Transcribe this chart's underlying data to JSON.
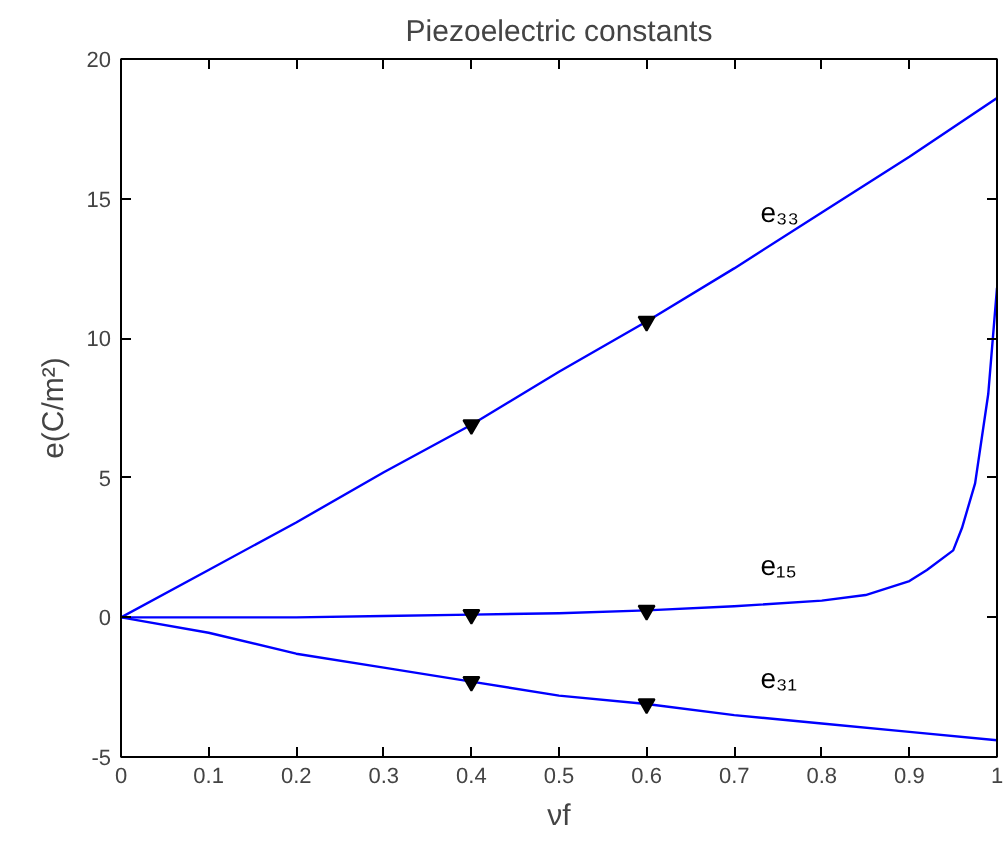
{
  "chart_data": {
    "type": "line",
    "title": "Piezoelectric constants",
    "xlabel": "νf",
    "ylabel": "e(C/m²)",
    "xlim": [
      0,
      1
    ],
    "ylim": [
      -5,
      20
    ],
    "xticks": [
      0,
      0.1,
      0.2,
      0.3,
      0.4,
      0.5,
      0.6,
      0.7,
      0.8,
      0.9,
      1
    ],
    "yticks": [
      -5,
      0,
      5,
      10,
      15,
      20
    ],
    "grid": false,
    "series": [
      {
        "name": "e₃₃",
        "color": "#0000ff",
        "x": [
          0,
          0.1,
          0.2,
          0.3,
          0.4,
          0.5,
          0.6,
          0.7,
          0.8,
          0.9,
          1.0
        ],
        "values": [
          0,
          1.7,
          3.4,
          5.2,
          6.9,
          8.8,
          10.6,
          12.5,
          14.5,
          16.5,
          18.6
        ]
      },
      {
        "name": "e₁₅",
        "color": "#0000ff",
        "x": [
          0,
          0.1,
          0.2,
          0.3,
          0.4,
          0.5,
          0.6,
          0.7,
          0.8,
          0.85,
          0.9,
          0.92,
          0.95,
          0.96,
          0.975,
          0.99,
          1.0
        ],
        "values": [
          0,
          0,
          0,
          0.05,
          0.1,
          0.15,
          0.25,
          0.4,
          0.6,
          0.8,
          1.3,
          1.7,
          2.4,
          3.2,
          4.8,
          8,
          11.8
        ]
      },
      {
        "name": "e₃₁",
        "color": "#0000ff",
        "x": [
          0,
          0.1,
          0.2,
          0.3,
          0.4,
          0.5,
          0.6,
          0.7,
          0.8,
          0.9,
          1.0
        ],
        "values": [
          0,
          -0.55,
          -1.3,
          -1.8,
          -2.3,
          -2.8,
          -3.1,
          -3.5,
          -3.8,
          -4.1,
          -4.4
        ]
      },
      {
        "type": "scatter",
        "marker": "triangle",
        "color": "#000000",
        "x": [
          0.4,
          0.6,
          0.4,
          0.6,
          0.4,
          0.6
        ],
        "values": [
          6.9,
          10.6,
          0.1,
          0.25,
          -2.3,
          -3.1
        ]
      }
    ]
  }
}
